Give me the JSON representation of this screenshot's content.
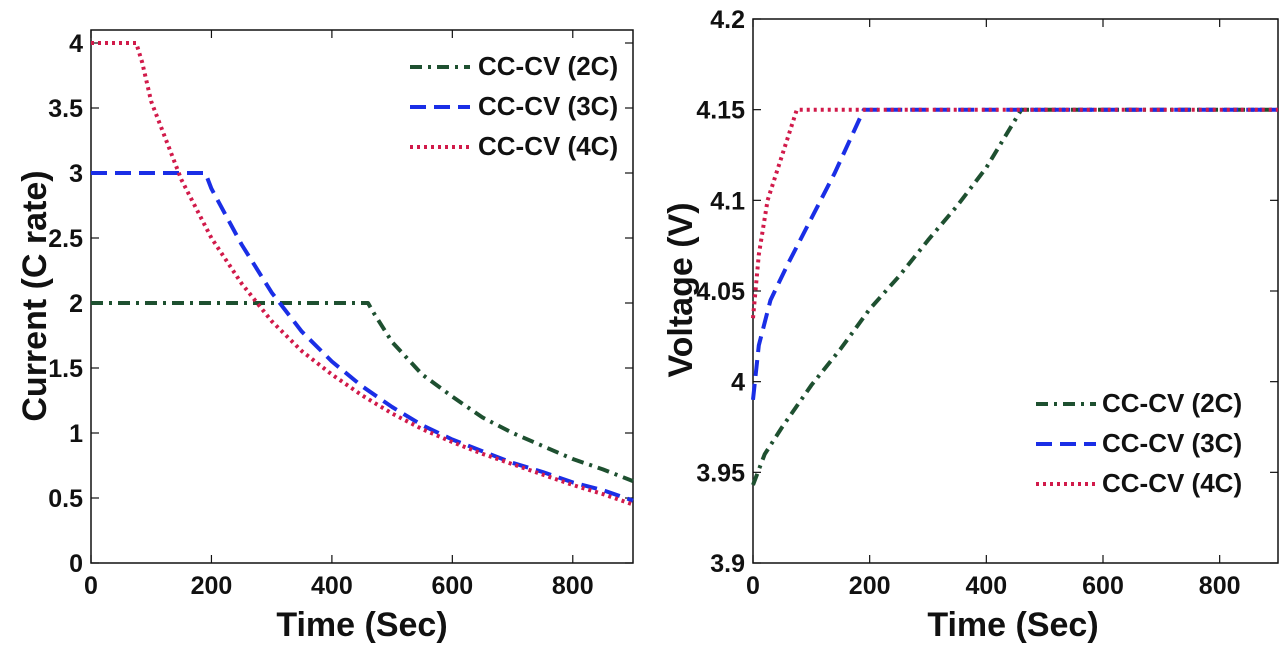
{
  "chart_data": [
    {
      "type": "line",
      "title": "",
      "xlabel": "Time (Sec)",
      "ylabel": "Current (C rate)",
      "xlim": [
        0,
        900
      ],
      "ylim": [
        0,
        4.1
      ],
      "xticks": [
        0,
        200,
        400,
        600,
        800
      ],
      "xtick_labels": [
        "0",
        "200",
        "400",
        "600",
        "800"
      ],
      "yticks": [
        0,
        0.5,
        1,
        1.5,
        2,
        2.5,
        3,
        3.5,
        4
      ],
      "ytick_labels": [
        "0",
        "0.5",
        "1",
        "1.5",
        "2",
        "2.5",
        "3",
        "3.5",
        "4"
      ],
      "grid": false,
      "legend_position": "top-right",
      "series": [
        {
          "name": "CC-CV (2C)",
          "color": "#1e5030",
          "style": "dashdot",
          "x": [
            0,
            460,
            470,
            500,
            550,
            600,
            650,
            700,
            750,
            800,
            850,
            900
          ],
          "y": [
            2.0,
            2.0,
            1.92,
            1.7,
            1.45,
            1.28,
            1.12,
            1.0,
            0.9,
            0.8,
            0.72,
            0.63
          ]
        },
        {
          "name": "CC-CV (3C)",
          "color": "#1a2ee6",
          "style": "dashed",
          "x": [
            0,
            190,
            200,
            250,
            300,
            350,
            400,
            450,
            500,
            550,
            600,
            650,
            700,
            750,
            800,
            850,
            900
          ],
          "y": [
            3.0,
            3.0,
            2.88,
            2.45,
            2.08,
            1.78,
            1.55,
            1.36,
            1.2,
            1.06,
            0.95,
            0.86,
            0.77,
            0.7,
            0.62,
            0.56,
            0.48
          ]
        },
        {
          "name": "CC-CV (4C)",
          "color": "#d11a4a",
          "style": "dotted",
          "x": [
            0,
            75,
            85,
            100,
            150,
            200,
            250,
            300,
            350,
            400,
            450,
            500,
            550,
            600,
            650,
            700,
            750,
            800,
            850,
            900
          ],
          "y": [
            4.0,
            4.0,
            3.85,
            3.55,
            2.95,
            2.5,
            2.15,
            1.86,
            1.63,
            1.45,
            1.29,
            1.15,
            1.03,
            0.93,
            0.84,
            0.76,
            0.68,
            0.6,
            0.53,
            0.45
          ]
        }
      ]
    },
    {
      "type": "line",
      "title": "",
      "xlabel": "Time (Sec)",
      "ylabel": "Voltage (V)",
      "xlim": [
        0,
        900
      ],
      "ylim": [
        3.9,
        4.2
      ],
      "xticks": [
        0,
        200,
        400,
        600,
        800
      ],
      "xtick_labels": [
        "0",
        "200",
        "400",
        "600",
        "800"
      ],
      "yticks": [
        3.9,
        3.95,
        4.0,
        4.05,
        4.1,
        4.15,
        4.2
      ],
      "ytick_labels": [
        "3.9",
        "3.95",
        "4",
        "4.05",
        "4.1",
        "4.15",
        "4.2"
      ],
      "grid": false,
      "legend_position": "bottom-right",
      "series": [
        {
          "name": "CC-CV (2C)",
          "color": "#1e5030",
          "style": "dashdot",
          "x": [
            0,
            20,
            50,
            100,
            150,
            200,
            250,
            300,
            350,
            400,
            460,
            900
          ],
          "y": [
            3.943,
            3.96,
            3.975,
            3.998,
            4.018,
            4.04,
            4.058,
            4.078,
            4.097,
            4.118,
            4.15,
            4.15
          ]
        },
        {
          "name": "CC-CV (3C)",
          "color": "#1a2ee6",
          "style": "dashed",
          "x": [
            0,
            10,
            30,
            60,
            100,
            140,
            190,
            900
          ],
          "y": [
            3.99,
            4.02,
            4.045,
            4.065,
            4.09,
            4.115,
            4.15,
            4.15
          ]
        },
        {
          "name": "CC-CV (4C)",
          "color": "#d11a4a",
          "style": "dotted",
          "x": [
            0,
            10,
            25,
            50,
            75,
            900
          ],
          "y": [
            4.035,
            4.07,
            4.1,
            4.125,
            4.15,
            4.15
          ]
        }
      ]
    }
  ]
}
